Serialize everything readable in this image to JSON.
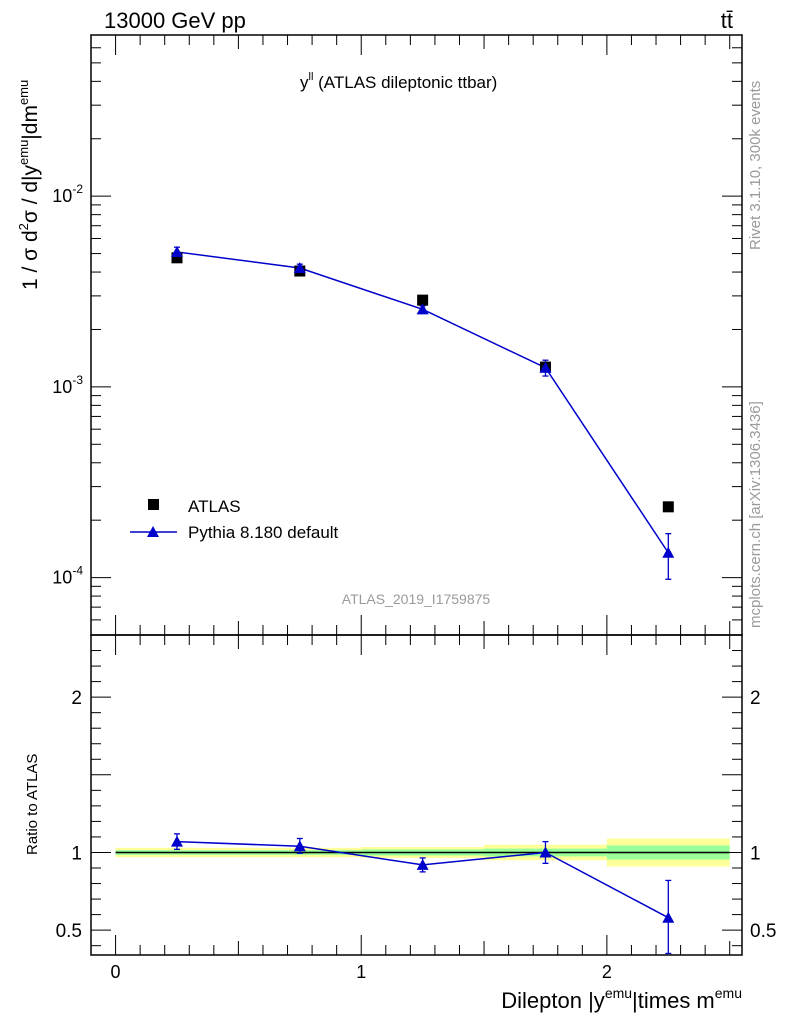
{
  "header": {
    "left_label": "13000 GeV pp",
    "right_label": "tt̄"
  },
  "side_labels": {
    "rivet": "Rivet 3.1.10,  300k events",
    "mcplots": "mcplots.cern.ch [arXiv:1306.3436]"
  },
  "plot_title": {
    "main": "y",
    "sup": "ll",
    "rest": " (ATLAS dileptonic ttbar)"
  },
  "watermark": "ATLAS_2019_I1759875",
  "y_axis_main": {
    "pre": "1 / σ  d",
    "sup1": "2",
    "mid": "σ / d|y",
    "sup2": "emu",
    "mid2": "|dm",
    "sup3": "emu"
  },
  "y_axis_ratio": "Ratio to ATLAS",
  "x_axis": {
    "pre": "Dilepton |y",
    "sup1": "emu",
    "mid": "|times m",
    "sup2": "emu"
  },
  "legend": {
    "data_label": "ATLAS",
    "mc_label": "Pythia 8.180 default"
  },
  "colors": {
    "mc": "#0000cc",
    "data": "#000000",
    "band_outer": "#ffff99",
    "band_inner": "#99ff99"
  },
  "chart_data": [
    {
      "type": "scatter",
      "panel": "main",
      "scale": "log",
      "xlim": [
        -0.1,
        2.55
      ],
      "ylim": [
        5e-05,
        0.07
      ],
      "x_ticks": [
        "0",
        "1",
        "2"
      ],
      "y_tick_labels": [
        {
          "base": "10",
          "exp": "-2",
          "value": 0.01
        },
        {
          "base": "10",
          "exp": "-3",
          "value": 0.001
        },
        {
          "base": "10",
          "exp": "-4",
          "value": 0.0001
        }
      ],
      "series": [
        {
          "name": "ATLAS",
          "x": [
            0.25,
            0.75,
            1.25,
            1.75,
            2.25
          ],
          "values": [
            0.00475,
            0.00405,
            0.00285,
            0.00127,
            0.000235
          ]
        },
        {
          "name": "Pythia 8.180 default",
          "x": [
            0.25,
            0.75,
            1.25,
            1.75,
            2.25
          ],
          "values": [
            0.0051,
            0.0042,
            0.00255,
            0.00126,
            0.000135
          ],
          "err_low": [
            0.0048,
            0.004,
            0.00244,
            0.00114,
            9.8e-05
          ],
          "err_high": [
            0.0054,
            0.0044,
            0.00266,
            0.00138,
            0.00017
          ]
        }
      ]
    },
    {
      "type": "scatter",
      "panel": "ratio",
      "xlim": [
        -0.1,
        2.55
      ],
      "ylim": [
        0.34,
        2.4
      ],
      "y_ticks": [
        "0.5",
        "1",
        "2"
      ],
      "bands": {
        "edges": [
          0,
          0.5,
          1,
          1.5,
          2,
          2.5
        ],
        "inner_lo": [
          0.985,
          0.985,
          0.98,
          0.975,
          0.955
        ],
        "inner_hi": [
          1.015,
          1.015,
          1.02,
          1.025,
          1.045
        ],
        "outer_lo": [
          0.97,
          0.97,
          0.965,
          0.95,
          0.91
        ],
        "outer_hi": [
          1.03,
          1.03,
          1.035,
          1.05,
          1.09
        ]
      },
      "series": [
        {
          "name": "Pythia 8.180 default",
          "x": [
            0.25,
            0.75,
            1.25,
            1.75,
            2.25
          ],
          "values": [
            1.07,
            1.04,
            0.92,
            1.0,
            0.58
          ],
          "err_low": [
            1.02,
            0.995,
            0.875,
            0.93,
            0.35
          ],
          "err_high": [
            1.12,
            1.09,
            0.965,
            1.07,
            0.82
          ]
        }
      ]
    }
  ]
}
